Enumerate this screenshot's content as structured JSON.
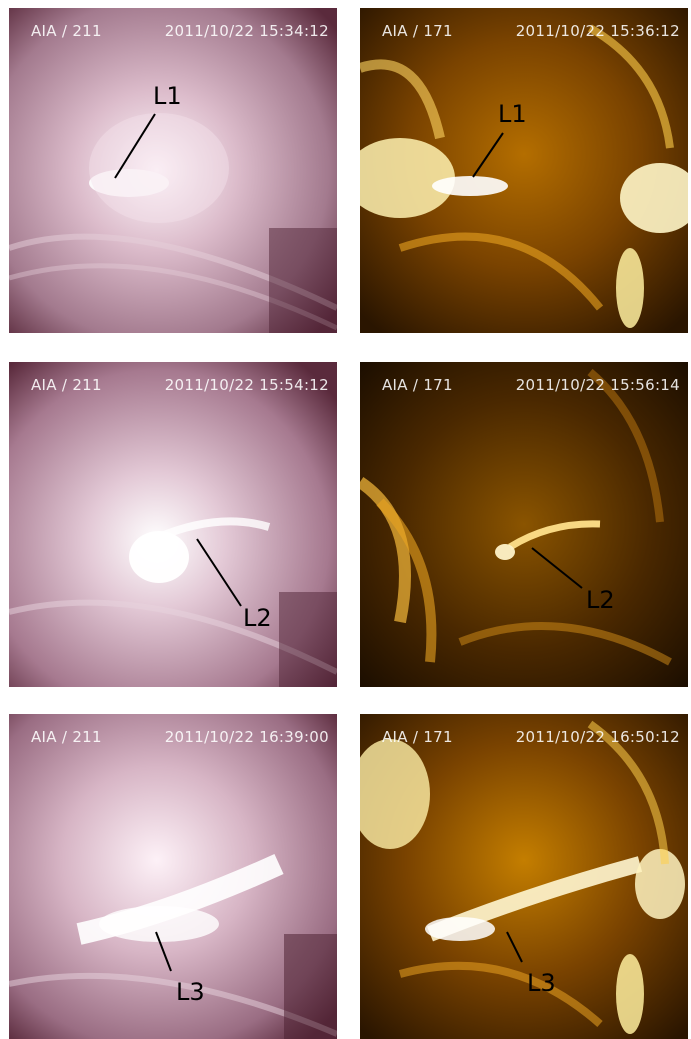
{
  "panels": [
    {
      "instrument": "AIA / 211",
      "timestamp": "2011/10/22 15:34:12",
      "label": "L1",
      "channel": "211"
    },
    {
      "instrument": "AIA / 171",
      "timestamp": "2011/10/22 15:36:12",
      "label": "L1",
      "channel": "171"
    },
    {
      "instrument": "AIA / 211",
      "timestamp": "2011/10/22 15:54:12",
      "label": "L2",
      "channel": "211"
    },
    {
      "instrument": "AIA / 171",
      "timestamp": "2011/10/22 15:56:14",
      "label": "L2",
      "channel": "171"
    },
    {
      "instrument": "AIA / 211",
      "timestamp": "2011/10/22 16:39:00",
      "label": "L3",
      "channel": "211"
    },
    {
      "instrument": "AIA / 171",
      "timestamp": "2011/10/22 16:50:12",
      "label": "L3",
      "channel": "171"
    }
  ],
  "colors": {
    "aia211_dark": "#5a2a3c",
    "aia211_mid": "#b58ea0",
    "aia211_bright": "#fff4fa",
    "aia171_dark": "#2a1500",
    "aia171_mid": "#c98a10",
    "aia171_bright": "#fff4c0"
  }
}
